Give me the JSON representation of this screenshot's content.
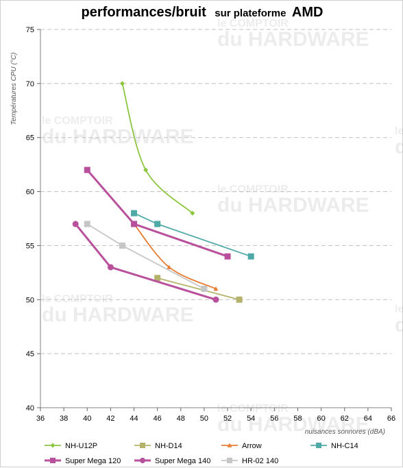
{
  "title": {
    "main": "performances/bruit",
    "small": "sur plateforme",
    "big": "AMD"
  },
  "watermark": {
    "line1": "le COMPTOIR",
    "line2": "du HARDWARE"
  },
  "chart_data": {
    "type": "line",
    "xlabel": "nuisances sonnores (dBA)",
    "ylabel": "Températures CPU (°C)",
    "xlim": [
      36,
      66
    ],
    "ylim": [
      40,
      75
    ],
    "xticks": [
      36,
      38,
      40,
      42,
      44,
      46,
      48,
      50,
      52,
      54,
      56,
      58,
      60,
      62,
      64,
      66
    ],
    "yticks": [
      40,
      45,
      50,
      55,
      60,
      65,
      70,
      75
    ],
    "grid": "horizontal",
    "legend_position": "bottom",
    "series": [
      {
        "name": "NH-U12P",
        "color": "#8cc63f",
        "marker": "diamond",
        "smooth": true,
        "x": [
          43,
          45,
          49
        ],
        "y": [
          70,
          62,
          58
        ]
      },
      {
        "name": "NH-D14",
        "color": "#b5b36b",
        "marker": "square",
        "smooth": false,
        "x": [
          46,
          53
        ],
        "y": [
          52,
          50
        ]
      },
      {
        "name": "Arrow",
        "color": "#e87d33",
        "marker": "triangle",
        "smooth": true,
        "x": [
          44,
          47,
          51
        ],
        "y": [
          57,
          53,
          51
        ]
      },
      {
        "name": "NH-C14",
        "color": "#4fa9a6",
        "marker": "square",
        "smooth": false,
        "x": [
          44,
          46,
          54
        ],
        "y": [
          58,
          57,
          54
        ]
      },
      {
        "name": "Super Mega 120",
        "color": "#b9509c",
        "marker": "square",
        "smooth": false,
        "x": [
          40,
          44,
          52
        ],
        "y": [
          62,
          57,
          54
        ]
      },
      {
        "name": "Super Mega 140",
        "color": "#b9509c",
        "marker": "circle",
        "smooth": false,
        "x": [
          39,
          42,
          51
        ],
        "y": [
          57,
          53,
          50
        ]
      },
      {
        "name": "HR-02 140",
        "color": "#c6c6c6",
        "marker": "square",
        "smooth": false,
        "x": [
          40,
          43,
          50
        ],
        "y": [
          57,
          55,
          51
        ]
      }
    ]
  }
}
